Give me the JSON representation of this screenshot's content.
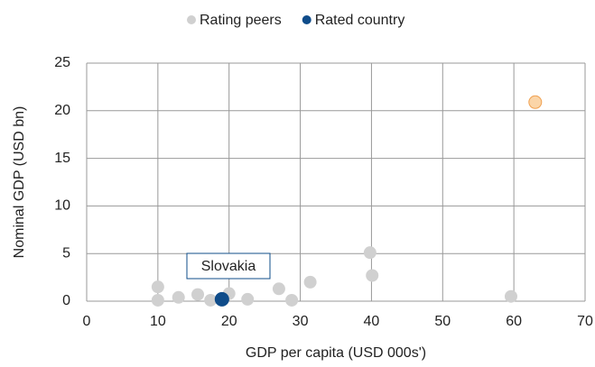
{
  "chart_data": {
    "type": "scatter",
    "x_label": "GDP per capita (USD 000s')",
    "y_label": "Nominal GDP (USD bn)",
    "xlim": [
      0,
      70
    ],
    "xticks": [
      0,
      10,
      20,
      30,
      40,
      50,
      60,
      70
    ],
    "ylim": [
      0,
      25
    ],
    "yticks": [
      0,
      5,
      10,
      15,
      20,
      25
    ],
    "grid": true,
    "legend": "top",
    "series": [
      {
        "name": "Rating peers",
        "color": "#d0d0d0",
        "size": 7,
        "x": [
          10.0,
          10.0,
          12.9,
          15.6,
          17.4,
          20.0,
          22.6,
          27.0,
          28.8,
          31.4,
          39.8,
          40.1,
          59.6
        ],
        "values": [
          1.5,
          0.1,
          0.4,
          0.7,
          0.1,
          0.8,
          0.2,
          1.3,
          0.1,
          2.0,
          5.1,
          2.7,
          0.5
        ]
      },
      {
        "name": "Rated country",
        "color": "#0f4c8a",
        "size": 8,
        "x": [
          19.0
        ],
        "values": [
          0.2
        ]
      },
      {
        "color": "#fbd5a8",
        "edge": "#f0a050",
        "size": 7,
        "x": [
          63.0
        ],
        "values": [
          20.9
        ]
      }
    ],
    "annotation": {
      "text": "Slovakia"
    }
  }
}
